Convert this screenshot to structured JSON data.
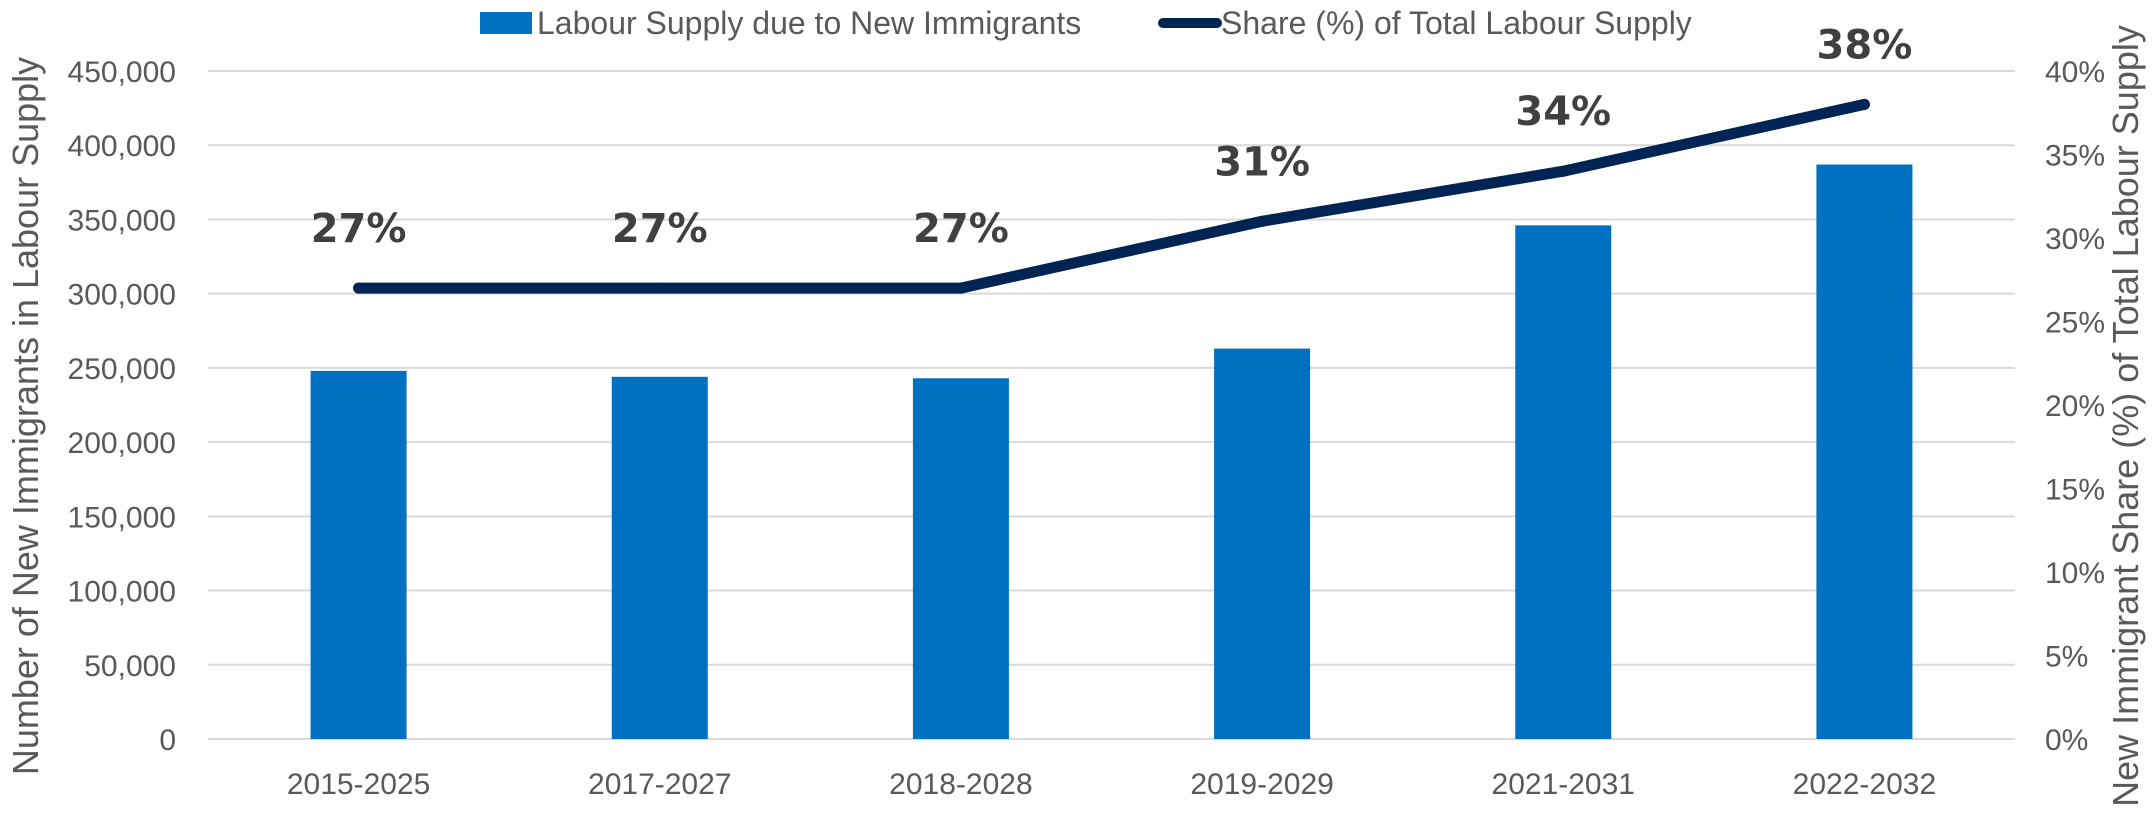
{
  "chart_data": {
    "type": "bar",
    "categories": [
      "2015-2025",
      "2017-2027",
      "2018-2028",
      "2019-2029",
      "2021-2031",
      "2022-2032"
    ],
    "series": [
      {
        "name": "Labour Supply due to New Immigrants",
        "type": "bar",
        "axis": "left",
        "color": "#0070C0",
        "values": [
          248000,
          244000,
          243000,
          263000,
          346000,
          387000
        ]
      },
      {
        "name": "Share (%) of Total Labour Supply",
        "type": "line",
        "axis": "right",
        "color": "#002554",
        "values": [
          27,
          27,
          27,
          31,
          34,
          38
        ],
        "labels": [
          "27%",
          "27%",
          "27%",
          "31%",
          "34%",
          "38%"
        ]
      }
    ],
    "ylabel": "Number of New Immigrants in Labour Supply",
    "y2label": "New Immigrant Share (%)  of Total Labour Supply",
    "ylim": [
      0,
      450000
    ],
    "y2lim": [
      0,
      40
    ],
    "yticks": [
      "0",
      "50,000",
      "100,000",
      "150,000",
      "200,000",
      "250,000",
      "300,000",
      "350,000",
      "400,000",
      "450,000"
    ],
    "y2ticks": [
      "0%",
      "5%",
      "10%",
      "15%",
      "20%",
      "25%",
      "30%",
      "35%",
      "40%"
    ],
    "grid": true,
    "legend_position": "top"
  }
}
